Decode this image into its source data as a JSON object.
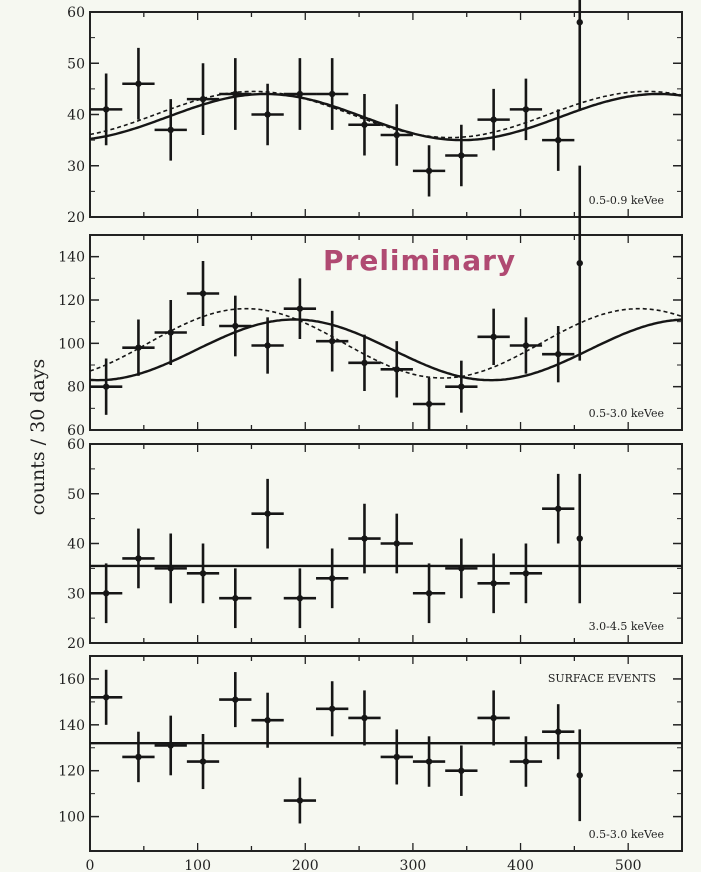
{
  "chart_data": {
    "type": "scatter",
    "ylabel": "counts / 30 days",
    "annotation": "Preliminary",
    "xlim": [
      0,
      550
    ],
    "xticks": [
      0,
      100,
      200,
      300,
      400,
      500
    ],
    "panels": [
      {
        "label": "0.5-0.9 keVee",
        "ylim": [
          20,
          60
        ],
        "yticks": [
          20,
          30,
          40,
          50,
          60
        ],
        "points": [
          {
            "x": 15,
            "y": 41,
            "xerr": 15,
            "yerr": 7
          },
          {
            "x": 45,
            "y": 46,
            "xerr": 15,
            "yerr": 7
          },
          {
            "x": 75,
            "y": 37,
            "xerr": 15,
            "yerr": 6
          },
          {
            "x": 105,
            "y": 43,
            "xerr": 15,
            "yerr": 7
          },
          {
            "x": 135,
            "y": 44,
            "xerr": 15,
            "yerr": 7
          },
          {
            "x": 165,
            "y": 40,
            "xerr": 15,
            "yerr": 6
          },
          {
            "x": 195,
            "y": 44,
            "xerr": 15,
            "yerr": 7
          },
          {
            "x": 225,
            "y": 44,
            "xerr": 15,
            "yerr": 7
          },
          {
            "x": 255,
            "y": 38,
            "xerr": 15,
            "yerr": 6
          },
          {
            "x": 285,
            "y": 36,
            "xerr": 15,
            "yerr": 6
          },
          {
            "x": 315,
            "y": 29,
            "xerr": 15,
            "yerr": 5
          },
          {
            "x": 345,
            "y": 32,
            "xerr": 15,
            "yerr": 6
          },
          {
            "x": 375,
            "y": 39,
            "xerr": 15,
            "yerr": 6
          },
          {
            "x": 405,
            "y": 41,
            "xerr": 15,
            "yerr": 6
          },
          {
            "x": 435,
            "y": 35,
            "xerr": 15,
            "yerr": 6
          },
          {
            "x": 455,
            "y": 58,
            "xerr": 0,
            "yerr": 17
          }
        ],
        "curves": [
          {
            "style": "solid",
            "offset": 39.5,
            "amp": 4.5,
            "phase": 163
          },
          {
            "style": "dashed",
            "offset": 40,
            "amp": 4.5,
            "phase": 152
          }
        ]
      },
      {
        "label": "0.5-3.0 keVee",
        "ylim": [
          60,
          150
        ],
        "yticks": [
          60,
          80,
          100,
          120,
          140
        ],
        "points": [
          {
            "x": 15,
            "y": 80,
            "xerr": 15,
            "yerr": 13
          },
          {
            "x": 45,
            "y": 98,
            "xerr": 15,
            "yerr": 13
          },
          {
            "x": 75,
            "y": 105,
            "xerr": 15,
            "yerr": 15
          },
          {
            "x": 105,
            "y": 123,
            "xerr": 15,
            "yerr": 15
          },
          {
            "x": 135,
            "y": 108,
            "xerr": 15,
            "yerr": 14
          },
          {
            "x": 165,
            "y": 99,
            "xerr": 15,
            "yerr": 13
          },
          {
            "x": 195,
            "y": 116,
            "xerr": 15,
            "yerr": 14
          },
          {
            "x": 225,
            "y": 101,
            "xerr": 15,
            "yerr": 14
          },
          {
            "x": 255,
            "y": 91,
            "xerr": 15,
            "yerr": 13
          },
          {
            "x": 285,
            "y": 88,
            "xerr": 15,
            "yerr": 13
          },
          {
            "x": 315,
            "y": 72,
            "xerr": 15,
            "yerr": 12
          },
          {
            "x": 345,
            "y": 80,
            "xerr": 15,
            "yerr": 12
          },
          {
            "x": 375,
            "y": 103,
            "xerr": 15,
            "yerr": 13
          },
          {
            "x": 405,
            "y": 99,
            "xerr": 15,
            "yerr": 13
          },
          {
            "x": 435,
            "y": 95,
            "xerr": 15,
            "yerr": 13
          },
          {
            "x": 455,
            "y": 137,
            "xerr": 0,
            "yerr": 45
          }
        ],
        "curves": [
          {
            "style": "solid",
            "offset": 97,
            "amp": 14,
            "phase": 190
          },
          {
            "style": "dashed",
            "offset": 100,
            "amp": 16,
            "phase": 145
          }
        ]
      },
      {
        "label": "3.0-4.5 keVee",
        "ylim": [
          20,
          60
        ],
        "yticks": [
          20,
          30,
          40,
          50,
          60
        ],
        "points": [
          {
            "x": 15,
            "y": 30,
            "xerr": 15,
            "yerr": 6
          },
          {
            "x": 45,
            "y": 37,
            "xerr": 15,
            "yerr": 6
          },
          {
            "x": 75,
            "y": 35,
            "xerr": 15,
            "yerr": 7
          },
          {
            "x": 105,
            "y": 34,
            "xerr": 15,
            "yerr": 6
          },
          {
            "x": 135,
            "y": 29,
            "xerr": 15,
            "yerr": 6
          },
          {
            "x": 165,
            "y": 46,
            "xerr": 15,
            "yerr": 7
          },
          {
            "x": 195,
            "y": 29,
            "xerr": 15,
            "yerr": 6
          },
          {
            "x": 225,
            "y": 33,
            "xerr": 15,
            "yerr": 6
          },
          {
            "x": 255,
            "y": 41,
            "xerr": 15,
            "yerr": 7
          },
          {
            "x": 285,
            "y": 40,
            "xerr": 15,
            "yerr": 6
          },
          {
            "x": 315,
            "y": 30,
            "xerr": 15,
            "yerr": 6
          },
          {
            "x": 345,
            "y": 35,
            "xerr": 15,
            "yerr": 6
          },
          {
            "x": 375,
            "y": 32,
            "xerr": 15,
            "yerr": 6
          },
          {
            "x": 405,
            "y": 34,
            "xerr": 15,
            "yerr": 6
          },
          {
            "x": 435,
            "y": 47,
            "xerr": 15,
            "yerr": 7
          },
          {
            "x": 455,
            "y": 41,
            "xerr": 0,
            "yerr": 13
          }
        ],
        "flat": 35.5
      },
      {
        "label": "SURFACE EVENTS",
        "sublabel": "0.5-3.0 keVee",
        "ylim": [
          85,
          170
        ],
        "yticks": [
          100,
          120,
          140,
          160
        ],
        "points": [
          {
            "x": 15,
            "y": 152,
            "xerr": 15,
            "yerr": 12
          },
          {
            "x": 45,
            "y": 126,
            "xerr": 15,
            "yerr": 11
          },
          {
            "x": 75,
            "y": 131,
            "xerr": 15,
            "yerr": 13
          },
          {
            "x": 105,
            "y": 124,
            "xerr": 15,
            "yerr": 12
          },
          {
            "x": 135,
            "y": 151,
            "xerr": 15,
            "yerr": 12
          },
          {
            "x": 165,
            "y": 142,
            "xerr": 15,
            "yerr": 12
          },
          {
            "x": 195,
            "y": 107,
            "xerr": 15,
            "yerr": 10
          },
          {
            "x": 225,
            "y": 147,
            "xerr": 15,
            "yerr": 12
          },
          {
            "x": 255,
            "y": 143,
            "xerr": 15,
            "yerr": 12
          },
          {
            "x": 285,
            "y": 126,
            "xerr": 15,
            "yerr": 12
          },
          {
            "x": 315,
            "y": 124,
            "xerr": 15,
            "yerr": 11
          },
          {
            "x": 345,
            "y": 120,
            "xerr": 15,
            "yerr": 11
          },
          {
            "x": 375,
            "y": 143,
            "xerr": 15,
            "yerr": 12
          },
          {
            "x": 405,
            "y": 124,
            "xerr": 15,
            "yerr": 11
          },
          {
            "x": 435,
            "y": 137,
            "xerr": 15,
            "yerr": 12
          },
          {
            "x": 455,
            "y": 118,
            "xerr": 0,
            "yerr": 20
          }
        ],
        "flat": 132
      }
    ]
  },
  "colors": {
    "background": "#f6f8f1",
    "ink": "#161616",
    "annotation": "#b04a72"
  }
}
